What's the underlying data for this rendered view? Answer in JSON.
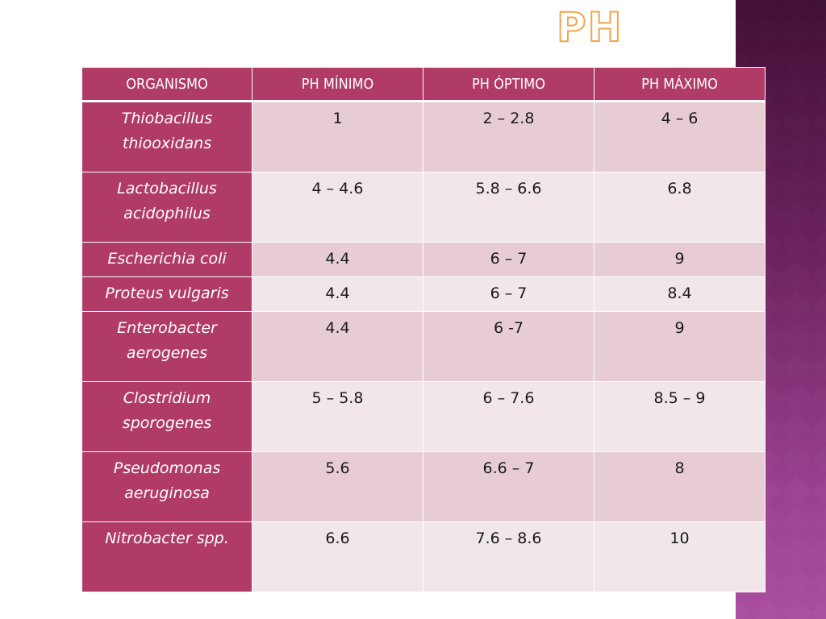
{
  "slide": {
    "title": "PH"
  },
  "table": {
    "headers": [
      "ORGANISMO",
      "PH MÍNIMO",
      "PH ÓPTIMO",
      "PH MÁXIMO"
    ],
    "rows": [
      {
        "organism": "Thiobacillus thiooxidans",
        "min": "1",
        "opt": "2 – 2.8",
        "max": "4 – 6"
      },
      {
        "organism": "Lactobacillus acidophilus",
        "min": "4 – 4.6",
        "opt": "5.8 – 6.6",
        "max": "6.8"
      },
      {
        "organism": "Escherichia coli",
        "min": "4.4",
        "opt": "6 – 7",
        "max": "9"
      },
      {
        "organism": "Proteus vulgaris",
        "min": "4.4",
        "opt": "6 – 7",
        "max": "8.4"
      },
      {
        "organism": "Enterobacter aerogenes",
        "min": "4.4",
        "opt": "6 -7",
        "max": "9"
      },
      {
        "organism": "Clostridium sporogenes",
        "min": "5 – 5.8",
        "opt": "6 – 7.6",
        "max": "8.5 – 9"
      },
      {
        "organism": "Pseudomonas aeruginosa",
        "min": "5.6",
        "opt": "6.6 – 7",
        "max": "8"
      },
      {
        "organism": "Nitrobacter spp.",
        "min": "6.6",
        "opt": "7.6 – 8.6",
        "max": "10"
      }
    ]
  },
  "colors": {
    "header_bg": "#b03b66",
    "row_odd_bg": "#e7cdd3",
    "row_even_bg": "#f1e6ea",
    "title_outline": "#f2a54a"
  }
}
